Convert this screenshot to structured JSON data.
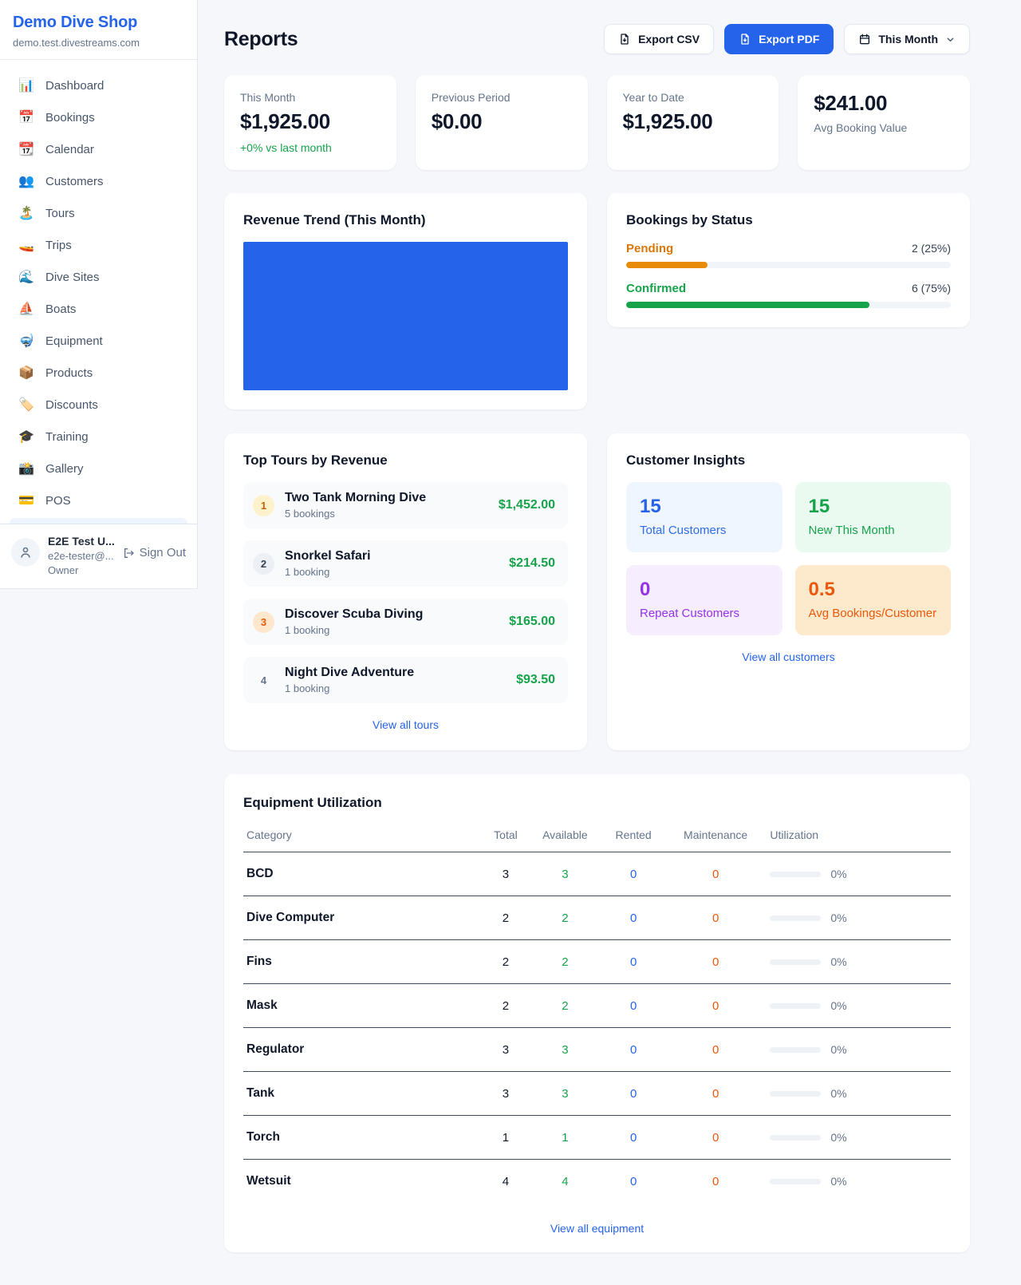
{
  "sidebar": {
    "shop_name": "Demo Dive Shop",
    "shop_domain": "demo.test.divestreams.com",
    "items": [
      {
        "id": "dashboard",
        "icon": "bar-chart-icon",
        "glyph": "📊",
        "label": "Dashboard"
      },
      {
        "id": "bookings",
        "icon": "calendar-icon",
        "glyph": "📅",
        "label": "Bookings"
      },
      {
        "id": "calendar",
        "icon": "tearoff-calendar-icon",
        "glyph": "📆",
        "label": "Calendar"
      },
      {
        "id": "customers",
        "icon": "people-icon",
        "glyph": "👥",
        "label": "Customers"
      },
      {
        "id": "tours",
        "icon": "island-icon",
        "glyph": "🏝️",
        "label": "Tours"
      },
      {
        "id": "trips",
        "icon": "speedboat-icon",
        "glyph": "🚤",
        "label": "Trips"
      },
      {
        "id": "dive-sites",
        "icon": "wave-icon",
        "glyph": "🌊",
        "label": "Dive Sites"
      },
      {
        "id": "boats",
        "icon": "sailboat-icon",
        "glyph": "⛵",
        "label": "Boats"
      },
      {
        "id": "equipment",
        "icon": "diving-mask-icon",
        "glyph": "🤿",
        "label": "Equipment"
      },
      {
        "id": "products",
        "icon": "package-icon",
        "glyph": "📦",
        "label": "Products"
      },
      {
        "id": "discounts",
        "icon": "tag-icon",
        "glyph": "🏷️",
        "label": "Discounts"
      },
      {
        "id": "training",
        "icon": "graduation-cap-icon",
        "glyph": "🎓",
        "label": "Training"
      },
      {
        "id": "gallery",
        "icon": "camera-icon",
        "glyph": "📸",
        "label": "Gallery"
      },
      {
        "id": "pos",
        "icon": "credit-card-icon",
        "glyph": "💳",
        "label": "POS"
      }
    ],
    "user": {
      "name": "E2E Test U...",
      "email": "e2e-tester@...",
      "role": "Owner",
      "sign_out_label": "Sign Out"
    }
  },
  "header": {
    "title": "Reports",
    "export_csv_label": "Export CSV",
    "export_pdf_label": "Export PDF",
    "period_label": "This Month"
  },
  "stats": [
    {
      "label": "This Month",
      "value": "$1,925.00",
      "sub": "+0% vs last month",
      "reversed": false
    },
    {
      "label": "Previous Period",
      "value": "$0.00",
      "sub": "",
      "reversed": false
    },
    {
      "label": "Year to Date",
      "value": "$1,925.00",
      "sub": "",
      "reversed": false
    },
    {
      "label": "Avg Booking Value",
      "value": "$241.00",
      "sub": "",
      "reversed": true
    }
  ],
  "revenue_trend": {
    "title": "Revenue Trend (This Month)",
    "chart_color": "#2563eb"
  },
  "bookings_by_status": {
    "title": "Bookings by Status",
    "rows": [
      {
        "label": "Pending",
        "count": 2,
        "pct": 25,
        "count_text": "2 (25%)",
        "color": "#d97706",
        "bar_color": "#e78b09"
      },
      {
        "label": "Confirmed",
        "count": 6,
        "pct": 75,
        "count_text": "6 (75%)",
        "color": "#16a34a",
        "bar_color": "#16a34a"
      }
    ]
  },
  "top_tours": {
    "title": "Top Tours by Revenue",
    "rows": [
      {
        "rank": "1",
        "badge": "gold",
        "name": "Two Tank Morning Dive",
        "bookings": "5 bookings",
        "amount": "$1,452.00"
      },
      {
        "rank": "2",
        "badge": "silver",
        "name": "Snorkel Safari",
        "bookings": "1 booking",
        "amount": "$214.50"
      },
      {
        "rank": "3",
        "badge": "bronze",
        "name": "Discover Scuba Diving",
        "bookings": "1 booking",
        "amount": "$165.00"
      },
      {
        "rank": "4",
        "badge": "plain",
        "name": "Night Dive Adventure",
        "bookings": "1 booking",
        "amount": "$93.50"
      }
    ],
    "link": "View all tours"
  },
  "customer_insights": {
    "title": "Customer Insights",
    "boxes": [
      {
        "value": "15",
        "label": "Total Customers",
        "theme": "t-blue",
        "color": "#2563eb"
      },
      {
        "value": "15",
        "label": "New This Month",
        "theme": "t-green",
        "color": "#16a34a"
      },
      {
        "value": "0",
        "label": "Repeat Customers",
        "theme": "t-purple",
        "color": "#9333ea"
      },
      {
        "value": "0.5",
        "label": "Avg Bookings/Customer",
        "theme": "t-orange",
        "color": "#ea580c"
      }
    ],
    "link": "View all customers"
  },
  "equipment": {
    "title": "Equipment Utilization",
    "columns": [
      "Category",
      "Total",
      "Available",
      "Rented",
      "Maintenance",
      "Utilization"
    ],
    "rows": [
      {
        "category": "BCD",
        "total": "3",
        "available": "3",
        "rented": "0",
        "maintenance": "0",
        "utilization_pct": 0,
        "utilization_text": "0%"
      },
      {
        "category": "Dive Computer",
        "total": "2",
        "available": "2",
        "rented": "0",
        "maintenance": "0",
        "utilization_pct": 0,
        "utilization_text": "0%"
      },
      {
        "category": "Fins",
        "total": "2",
        "available": "2",
        "rented": "0",
        "maintenance": "0",
        "utilization_pct": 0,
        "utilization_text": "0%"
      },
      {
        "category": "Mask",
        "total": "2",
        "available": "2",
        "rented": "0",
        "maintenance": "0",
        "utilization_pct": 0,
        "utilization_text": "0%"
      },
      {
        "category": "Regulator",
        "total": "3",
        "available": "3",
        "rented": "0",
        "maintenance": "0",
        "utilization_pct": 0,
        "utilization_text": "0%"
      },
      {
        "category": "Tank",
        "total": "3",
        "available": "3",
        "rented": "0",
        "maintenance": "0",
        "utilization_pct": 0,
        "utilization_text": "0%"
      },
      {
        "category": "Torch",
        "total": "1",
        "available": "1",
        "rented": "0",
        "maintenance": "0",
        "utilization_pct": 0,
        "utilization_text": "0%"
      },
      {
        "category": "Wetsuit",
        "total": "4",
        "available": "4",
        "rented": "0",
        "maintenance": "0",
        "utilization_pct": 0,
        "utilization_text": "0%"
      }
    ],
    "link": "View all equipment"
  },
  "colors": {
    "accent_blue": "#2563eb",
    "success_green": "#16a34a",
    "pending_orange": "#d97706",
    "maintenance_orange": "#ea580c",
    "purple": "#9333ea"
  }
}
